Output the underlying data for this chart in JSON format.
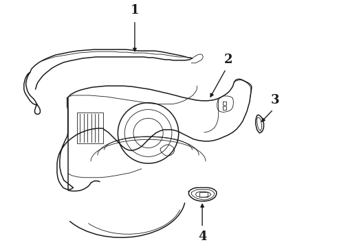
{
  "background_color": "#ffffff",
  "line_color": "#1a1a1a",
  "fig_width": 4.9,
  "fig_height": 3.6,
  "dpi": 100,
  "lw_main": 1.1,
  "lw_thin": 0.6,
  "lw_thick": 1.5
}
